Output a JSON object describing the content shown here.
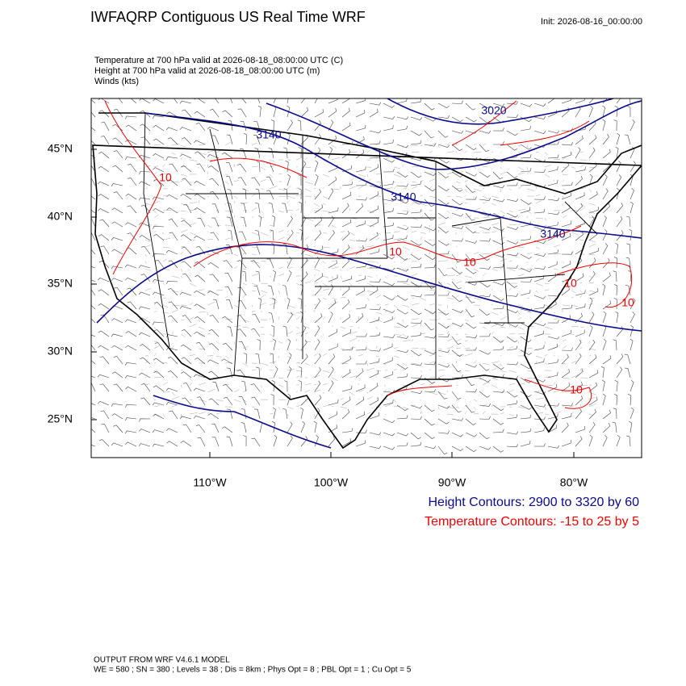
{
  "header": {
    "title": "IWFAQRP Contiguous US Real Time WRF",
    "init": "Init: 2026-08-16_00:00:00"
  },
  "fields": [
    "Temperature at 700 hPa valid at 2026-08-18_08:00:00 UTC   (C)",
    "Height at 700 hPa valid at 2026-08-18_08:00:00 UTC   (m)",
    "Winds   (kts)"
  ],
  "map": {
    "lat_labels": [
      "45°N",
      "40°N",
      "35°N",
      "30°N",
      "25°N"
    ],
    "lon_labels": [
      "110°W",
      "100°W",
      "90°W",
      "80°W"
    ],
    "contour_labels": [
      "3020",
      "3140",
      "3140",
      "3140",
      "10",
      "10",
      "10",
      "10",
      "10",
      "10"
    ]
  },
  "legend": [
    "Height Contours: 2900 to 3320 by 60",
    "Temperature Contours: -15 to 25 by 5"
  ],
  "footer": [
    "OUTPUT FROM WRF V4.6.1 MODEL",
    "WE = 580 ; SN = 380 ; Levels = 38 ; Dis = 8km ; Phys Opt = 8 ; PBL Opt = 1 ; Cu Opt = 5"
  ]
}
